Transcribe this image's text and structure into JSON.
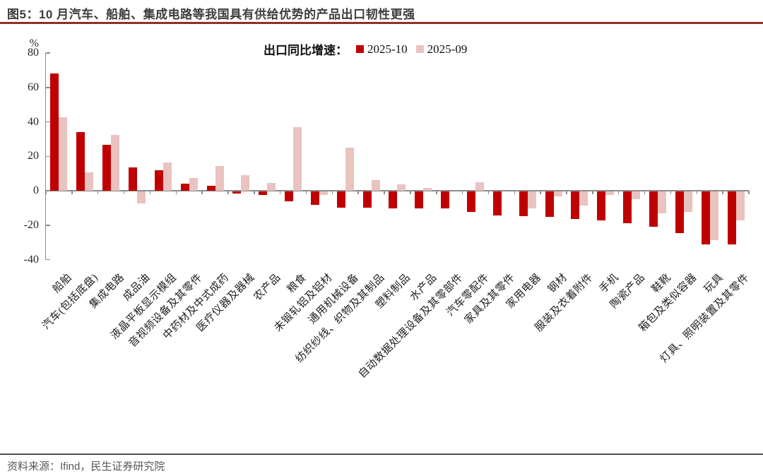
{
  "header": {
    "title": "图5：10 月汽车、船舶、集成电路等我国具有供给优势的产品出口韧性更强"
  },
  "chart_data": {
    "type": "bar",
    "title": "出口同比增速：",
    "unit": "%",
    "ylim": [
      -40,
      80
    ],
    "yticks": [
      80,
      60,
      40,
      20,
      0,
      -20,
      -40
    ],
    "grid": false,
    "legend_position": "top-center",
    "categories": [
      "船舶",
      "汽车(包括底盘)",
      "集成电路",
      "成品油",
      "液晶平板显示模组",
      "音视频设备及其零件",
      "中药材及中式成药",
      "医疗仪器及器械",
      "农产品",
      "粮食",
      "未锻轧铝及铝材",
      "通用机械设备",
      "纺织纱线、织物及其制品",
      "塑料制品",
      "水产品",
      "自动数据处理设备及其零部件",
      "汽车零配件",
      "家具及其零件",
      "家用电器",
      "钢材",
      "服装及衣着附件",
      "手机",
      "陶瓷产品",
      "鞋靴",
      "箱包及类似容器",
      "玩具",
      "灯具、照明装置及其零件"
    ],
    "series": [
      {
        "name": "2025-10",
        "color": "#c00000",
        "values": [
          68,
          34,
          26.5,
          13.5,
          12,
          4,
          3,
          -1.5,
          -2,
          -6,
          -8,
          -9.5,
          -9.5,
          -10,
          -10,
          -10,
          -12,
          -14,
          -14.5,
          -15,
          -16,
          -17,
          -18.5,
          -20.5,
          -24.5,
          -31,
          -31
        ]
      },
      {
        "name": "2025-09",
        "color": "#e8c3c0",
        "values": [
          42.5,
          10.5,
          32.5,
          -7,
          16.5,
          7.5,
          14.5,
          9,
          4.5,
          37,
          -2,
          25,
          6,
          3.5,
          1.5,
          0,
          5,
          0,
          -10,
          -3,
          -8.5,
          -2,
          -4.5,
          -13,
          -12,
          -28.5,
          -17
        ]
      }
    ]
  },
  "footer": {
    "source": "资料来源：Ifind，民生证券研究院"
  },
  "colors": {
    "accent_rule": "#942d2b",
    "axis": "#8c8c8c",
    "text": "#262626",
    "footer_rule": "#4d4d4d",
    "footer_text": "#595959"
  }
}
